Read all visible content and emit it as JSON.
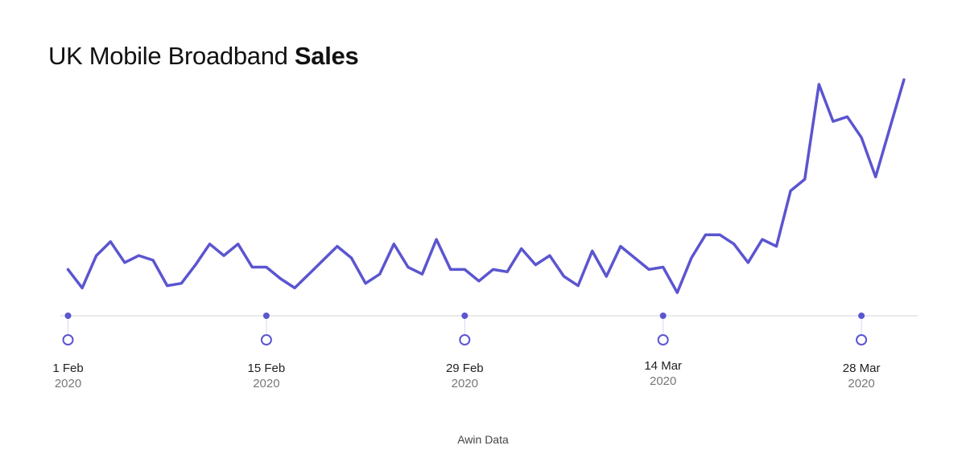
{
  "chart_data": {
    "type": "line",
    "title_regular": "UK Mobile Broadband ",
    "title_bold": "Sales",
    "source": "Awin Data",
    "colors": {
      "line": "#5b55d0",
      "axis": "#e2e2e2",
      "year": "#777777"
    },
    "x_start": "2020-02-01",
    "x_end": "2020-04-01",
    "ticks": [
      {
        "date": "1 Feb",
        "year": "2020",
        "index": 0
      },
      {
        "date": "15 Feb",
        "year": "2020",
        "index": 14
      },
      {
        "date": "29 Feb",
        "year": "2020",
        "index": 28
      },
      {
        "date": "14 Mar",
        "year": "2020",
        "index": 42
      },
      {
        "date": "28 Mar",
        "year": "2020",
        "index": 56
      }
    ],
    "ylim": [
      0,
      100
    ],
    "grid": false,
    "legend": "none",
    "series": [
      {
        "values": [
          20,
          12,
          26,
          32,
          23,
          26,
          24,
          13,
          14,
          22,
          31,
          26,
          31,
          21,
          21,
          16,
          12,
          18,
          24,
          30,
          25,
          14,
          18,
          31,
          21,
          18,
          33,
          20,
          20,
          15,
          20,
          19,
          29,
          22,
          26,
          17,
          13,
          28,
          17,
          30,
          25,
          20,
          21,
          10,
          25,
          35,
          35,
          31,
          23,
          33,
          30,
          54,
          59,
          100,
          84,
          86,
          77,
          60,
          81,
          102
        ]
      }
    ]
  }
}
